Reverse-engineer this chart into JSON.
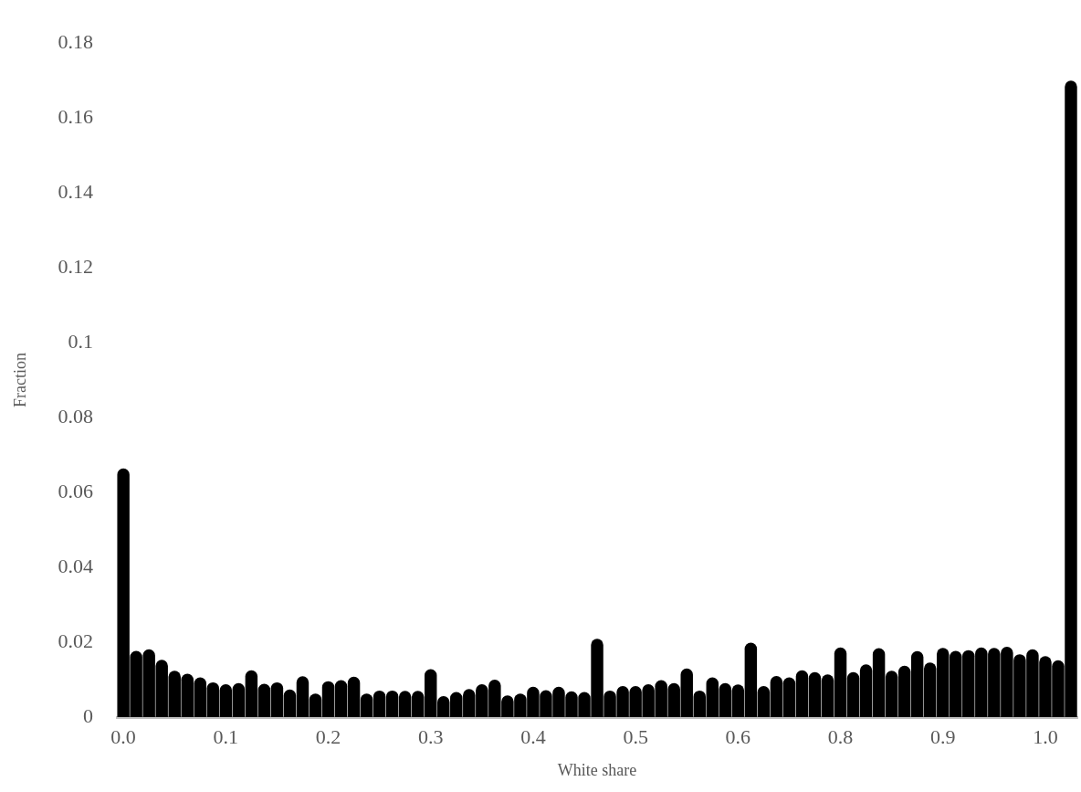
{
  "chart_data": {
    "type": "bar",
    "xlabel": "White share",
    "ylabel": "Fraction",
    "categories": [
      "0.0",
      null,
      null,
      null,
      null,
      null,
      null,
      null,
      "0.1",
      null,
      null,
      null,
      null,
      null,
      null,
      null,
      "0.2",
      null,
      null,
      null,
      null,
      null,
      null,
      null,
      "0.3",
      null,
      null,
      null,
      null,
      null,
      null,
      null,
      "0.4",
      null,
      null,
      null,
      null,
      null,
      null,
      null,
      "0.5",
      null,
      null,
      null,
      null,
      null,
      null,
      null,
      "0.6",
      null,
      null,
      null,
      null,
      null,
      null,
      null,
      "0.8",
      null,
      null,
      null,
      null,
      null,
      null,
      null,
      "0.9",
      null,
      null,
      null,
      null,
      null,
      null,
      null,
      "1.0",
      null,
      null
    ],
    "values": [
      0.0664,
      0.0177,
      0.0181,
      0.0153,
      0.0124,
      0.0116,
      0.0106,
      0.0093,
      0.0088,
      0.0091,
      0.0125,
      0.0089,
      0.0093,
      0.0074,
      0.0109,
      0.0063,
      0.0096,
      0.0099,
      0.0108,
      0.0063,
      0.0071,
      0.0071,
      0.007,
      0.007,
      0.0128,
      0.0056,
      0.0067,
      0.0075,
      0.0088,
      0.01,
      0.0058,
      0.0063,
      0.0081,
      0.0072,
      0.0081,
      0.0069,
      0.0067,
      0.0209,
      0.0071,
      0.0083,
      0.0083,
      0.0088,
      0.0099,
      0.0091,
      0.013,
      0.0071,
      0.0106,
      0.0091,
      0.0087,
      0.0199,
      0.0083,
      0.011,
      0.0106,
      0.0125,
      0.012,
      0.0114,
      0.0186,
      0.012,
      0.0141,
      0.0184,
      0.0124,
      0.0137,
      0.0176,
      0.0146,
      0.0185,
      0.0177,
      0.0179,
      0.0186,
      0.0185,
      0.0188,
      0.0168,
      0.0181,
      0.0163,
      0.0152,
      0.17
    ],
    "color": "#000000",
    "ylim": [
      0,
      0.18
    ],
    "yticks": [
      0,
      0.02,
      0.04,
      0.06,
      0.08,
      0.1,
      0.12,
      0.14,
      0.16,
      0.18
    ],
    "grid": false,
    "legend": false
  }
}
